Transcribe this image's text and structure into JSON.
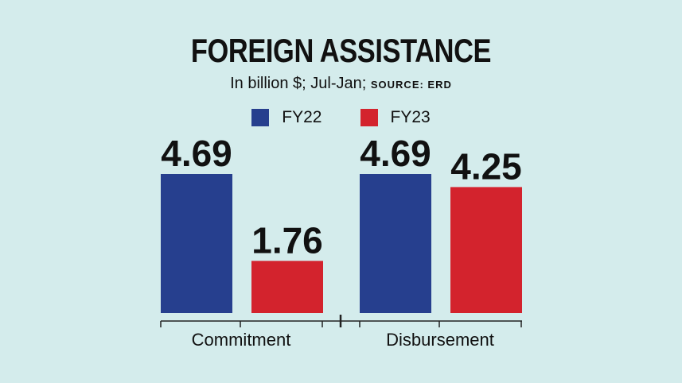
{
  "chart_data": {
    "type": "bar",
    "title": "FOREIGN ASSISTANCE",
    "subtitle": "In billion $; Jul-Jan;",
    "source": "SOURCE: ERD",
    "categories": [
      "Commitment",
      "Disbursement"
    ],
    "series": [
      {
        "name": "FY22",
        "color": "#263f8e",
        "values": [
          4.69,
          4.69
        ],
        "labels": [
          "4.69",
          "4.69"
        ]
      },
      {
        "name": "FY23",
        "color": "#d3232d",
        "values": [
          1.76,
          4.25
        ],
        "labels": [
          "1.76",
          "4.25"
        ]
      }
    ],
    "ylim": [
      0,
      4.69
    ],
    "grid": false,
    "legend_position": "top-center"
  }
}
